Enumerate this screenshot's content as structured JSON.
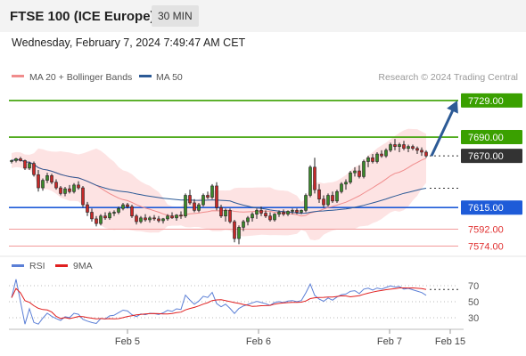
{
  "header": {
    "title": "FTSE 100 (ICE Europe)",
    "timeframe": "30 MIN",
    "datetime": "Wednesday, February 7, 2024 7:49:47 AM CET"
  },
  "legend": {
    "main": [
      {
        "label": "MA 20 + Bollinger Bands",
        "color": "#f08c8c"
      },
      {
        "label": "MA 50",
        "color": "#2c5a96"
      }
    ],
    "copyright": "Research © 2024 Trading Central",
    "rsi": [
      {
        "label": "RSI",
        "color": "#5b7fd6"
      },
      {
        "label": "9MA",
        "color": "#e02020"
      }
    ]
  },
  "chart_data": {
    "type": "candlestick",
    "y_range": [
      7565,
      7745
    ],
    "x_ticks": [
      "Feb 5",
      "Feb 6",
      "Feb 7",
      "Feb 15"
    ],
    "levels": [
      {
        "value": 7729.0,
        "label": "7729.00",
        "color": "#3aa000",
        "style": "solid",
        "badge": "#3aa000"
      },
      {
        "value": 7690.0,
        "label": "7690.00",
        "color": "#3aa000",
        "style": "solid",
        "badge": "#3aa000"
      },
      {
        "value": 7670.0,
        "label": "7670.00",
        "color": "#333333",
        "style": "dotted",
        "badge": "#333333"
      },
      {
        "value": 7615.0,
        "label": "7615.00",
        "color": "#1e5bd8",
        "style": "solid",
        "badge": "#1e5bd8"
      },
      {
        "value": 7592.0,
        "label": "7592.00",
        "color": "#f29a9a",
        "style": "solid",
        "badge": "none"
      },
      {
        "value": 7574.0,
        "label": "7574.00",
        "color": "#f29a9a",
        "style": "solid",
        "badge": "none"
      }
    ],
    "candles": [
      [
        7664,
        7666,
        7662,
        7665
      ],
      [
        7665,
        7668,
        7663,
        7667
      ],
      [
        7667,
        7669,
        7664,
        7665
      ],
      [
        7665,
        7666,
        7655,
        7657
      ],
      [
        7657,
        7664,
        7655,
        7662
      ],
      [
        7662,
        7664,
        7648,
        7650
      ],
      [
        7650,
        7655,
        7632,
        7636
      ],
      [
        7636,
        7646,
        7633,
        7644
      ],
      [
        7644,
        7652,
        7641,
        7649
      ],
      [
        7649,
        7651,
        7640,
        7642
      ],
      [
        7642,
        7645,
        7634,
        7636
      ],
      [
        7636,
        7638,
        7628,
        7630
      ],
      [
        7630,
        7637,
        7627,
        7635
      ],
      [
        7635,
        7639,
        7630,
        7632
      ],
      [
        7632,
        7641,
        7630,
        7639
      ],
      [
        7639,
        7643,
        7634,
        7636
      ],
      [
        7636,
        7638,
        7615,
        7618
      ],
      [
        7618,
        7621,
        7606,
        7610
      ],
      [
        7610,
        7614,
        7600,
        7603
      ],
      [
        7603,
        7606,
        7595,
        7598
      ],
      [
        7598,
        7608,
        7596,
        7606
      ],
      [
        7606,
        7610,
        7602,
        7604
      ],
      [
        7604,
        7611,
        7602,
        7609
      ],
      [
        7609,
        7612,
        7606,
        7610
      ],
      [
        7610,
        7616,
        7608,
        7614
      ],
      [
        7614,
        7620,
        7612,
        7618
      ],
      [
        7618,
        7620,
        7614,
        7616
      ],
      [
        7616,
        7618,
        7604,
        7606
      ],
      [
        7606,
        7608,
        7597,
        7600
      ],
      [
        7600,
        7606,
        7598,
        7604
      ],
      [
        7604,
        7608,
        7600,
        7602
      ],
      [
        7602,
        7606,
        7599,
        7604
      ],
      [
        7604,
        7607,
        7601,
        7603
      ],
      [
        7603,
        7606,
        7599,
        7601
      ],
      [
        7601,
        7604,
        7598,
        7603
      ],
      [
        7603,
        7608,
        7601,
        7606
      ],
      [
        7606,
        7610,
        7603,
        7604
      ],
      [
        7604,
        7608,
        7601,
        7607
      ],
      [
        7607,
        7611,
        7603,
        7606
      ],
      [
        7606,
        7630,
        7604,
        7628
      ],
      [
        7628,
        7634,
        7618,
        7620
      ],
      [
        7620,
        7624,
        7610,
        7612
      ],
      [
        7612,
        7620,
        7610,
        7618
      ],
      [
        7618,
        7630,
        7616,
        7628
      ],
      [
        7628,
        7632,
        7624,
        7626
      ],
      [
        7626,
        7640,
        7624,
        7638
      ],
      [
        7638,
        7642,
        7612,
        7615
      ],
      [
        7615,
        7618,
        7604,
        7606
      ],
      [
        7606,
        7614,
        7600,
        7612
      ],
      [
        7612,
        7614,
        7598,
        7600
      ],
      [
        7600,
        7602,
        7578,
        7582
      ],
      [
        7582,
        7596,
        7576,
        7594
      ],
      [
        7594,
        7602,
        7590,
        7600
      ],
      [
        7600,
        7606,
        7596,
        7604
      ],
      [
        7604,
        7610,
        7600,
        7608
      ],
      [
        7608,
        7614,
        7603,
        7612
      ],
      [
        7612,
        7616,
        7606,
        7609
      ],
      [
        7609,
        7612,
        7604,
        7606
      ],
      [
        7606,
        7610,
        7600,
        7602
      ],
      [
        7602,
        7609,
        7600,
        7608
      ],
      [
        7608,
        7612,
        7605,
        7610
      ],
      [
        7610,
        7613,
        7606,
        7608
      ],
      [
        7608,
        7612,
        7606,
        7611
      ],
      [
        7611,
        7614,
        7608,
        7612
      ],
      [
        7612,
        7614,
        7608,
        7610
      ],
      [
        7610,
        7613,
        7608,
        7612
      ],
      [
        7612,
        7630,
        7610,
        7628
      ],
      [
        7628,
        7660,
        7626,
        7658
      ],
      [
        7658,
        7668,
        7630,
        7634
      ],
      [
        7634,
        7640,
        7620,
        7624
      ],
      [
        7624,
        7628,
        7615,
        7618
      ],
      [
        7618,
        7630,
        7616,
        7628
      ],
      [
        7628,
        7632,
        7620,
        7622
      ],
      [
        7622,
        7634,
        7620,
        7632
      ],
      [
        7632,
        7642,
        7630,
        7640
      ],
      [
        7640,
        7645,
        7634,
        7642
      ],
      [
        7642,
        7654,
        7640,
        7652
      ],
      [
        7652,
        7658,
        7648,
        7654
      ],
      [
        7654,
        7660,
        7646,
        7648
      ],
      [
        7648,
        7666,
        7646,
        7664
      ],
      [
        7664,
        7670,
        7658,
        7668
      ],
      [
        7668,
        7672,
        7662,
        7664
      ],
      [
        7664,
        7674,
        7662,
        7672
      ],
      [
        7672,
        7676,
        7668,
        7670
      ],
      [
        7670,
        7678,
        7668,
        7676
      ],
      [
        7676,
        7684,
        7674,
        7682
      ],
      [
        7682,
        7688,
        7676,
        7680
      ],
      [
        7680,
        7684,
        7674,
        7682
      ],
      [
        7682,
        7686,
        7676,
        7678
      ],
      [
        7678,
        7682,
        7674,
        7680
      ],
      [
        7680,
        7682,
        7676,
        7678
      ],
      [
        7678,
        7680,
        7672,
        7676
      ],
      [
        7676,
        7679,
        7670,
        7674
      ],
      [
        7674,
        7676,
        7668,
        7670
      ]
    ],
    "forecast_arrow": {
      "from": 7670,
      "to": 7729
    },
    "rsi": {
      "ylim": [
        20,
        80
      ],
      "levels": [
        70,
        50,
        30
      ],
      "tick_labels": [
        "70",
        "50",
        "30"
      ]
    }
  }
}
